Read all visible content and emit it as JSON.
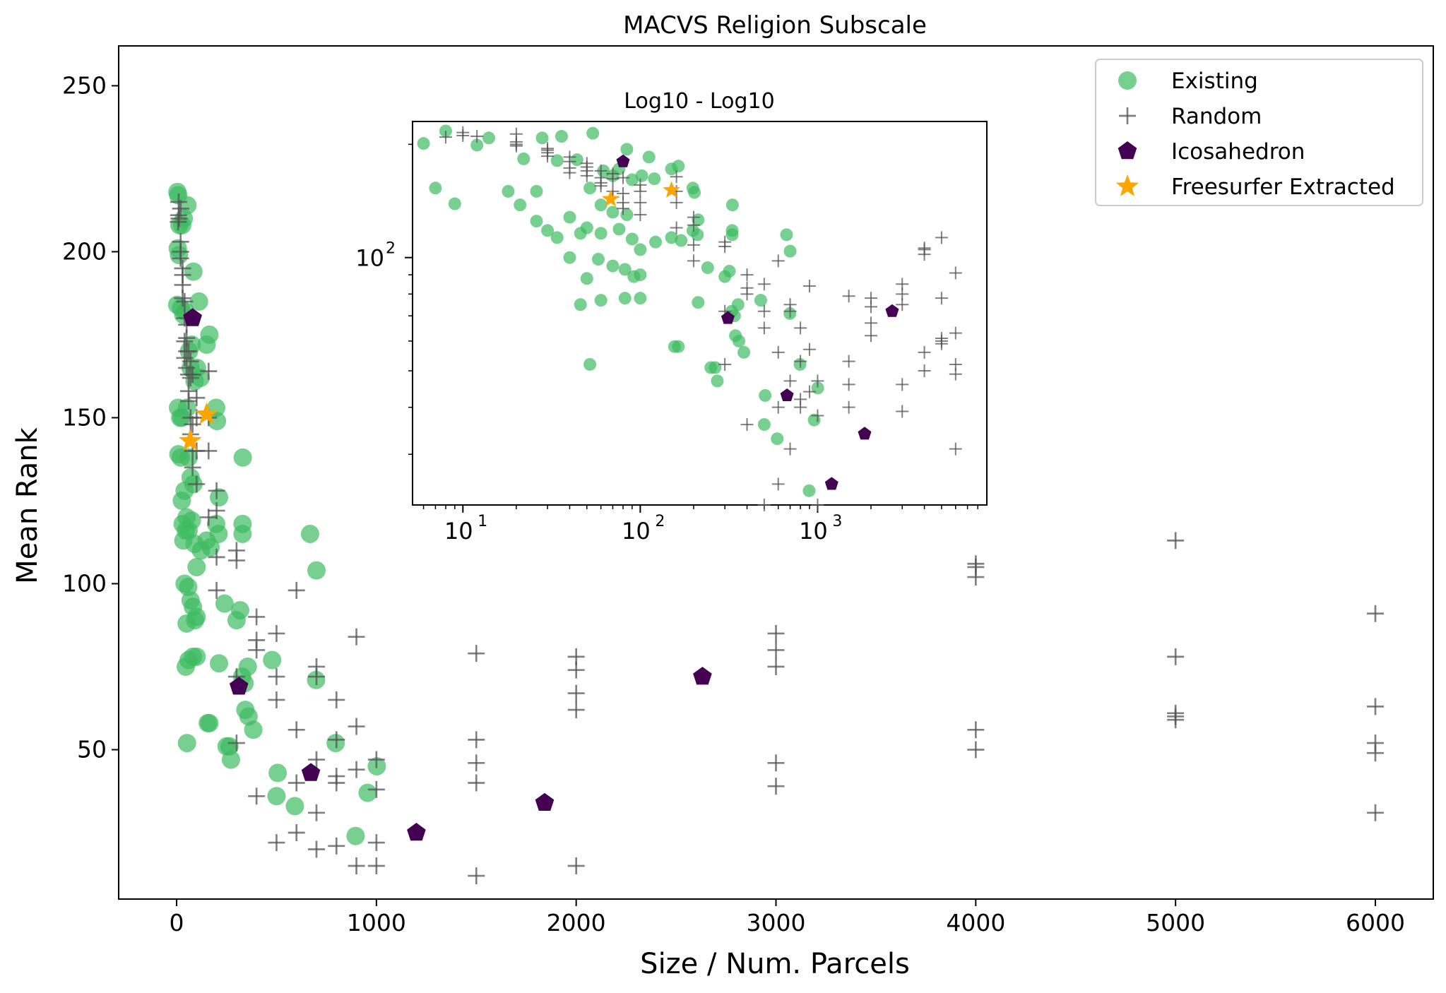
{
  "chart_data": {
    "type": "scatter",
    "title": "MACVS Religion Subscale",
    "xlabel": "Size / Num. Parcels",
    "ylabel": "Mean Rank",
    "xlim": [
      -290,
      6290
    ],
    "ylim": [
      5,
      262
    ],
    "xticks": [
      "0",
      "1000",
      "2000",
      "3000",
      "4000",
      "5000",
      "6000"
    ],
    "xtick_values": [
      0,
      1000,
      2000,
      3000,
      4000,
      5000,
      6000
    ],
    "yticks": [
      "50",
      "100",
      "150",
      "200",
      "250"
    ],
    "ytick_values": [
      50,
      100,
      150,
      200,
      250
    ],
    "grid": false,
    "legend_position": "top-right",
    "colors": {
      "existing": "#3dbb61",
      "random": "#555555",
      "icosahedron": "#440154",
      "freesurfer": "#ffa500"
    },
    "series": [
      {
        "name": "Existing",
        "marker": "circle",
        "color": "#3dbb61",
        "points": [
          [
            4,
            218
          ],
          [
            8,
            217
          ],
          [
            14,
            208
          ],
          [
            28,
            208
          ],
          [
            54,
            214
          ],
          [
            36,
            210
          ],
          [
            6,
            201
          ],
          [
            12,
            199
          ],
          [
            3,
            184
          ],
          [
            22,
            183
          ],
          [
            34,
            181
          ],
          [
            44,
            182
          ],
          [
            84,
            194
          ],
          [
            112,
            185
          ],
          [
            7,
            153
          ],
          [
            18,
            150
          ],
          [
            26,
            150
          ],
          [
            52,
            153
          ],
          [
            62,
            170
          ],
          [
            70,
            165
          ],
          [
            76,
            172
          ],
          [
            90,
            161
          ],
          [
            102,
            165
          ],
          [
            120,
            162
          ],
          [
            150,
            172
          ],
          [
            164,
            175
          ],
          [
            198,
            153
          ],
          [
            202,
            149
          ],
          [
            9,
            139
          ],
          [
            21,
            138
          ],
          [
            60,
            138
          ],
          [
            70,
            132
          ],
          [
            84,
            130
          ],
          [
            331,
            138
          ],
          [
            26,
            125
          ],
          [
            40,
            128
          ],
          [
            50,
            120
          ],
          [
            30,
            118
          ],
          [
            46,
            116
          ],
          [
            34,
            113
          ],
          [
            60,
            116
          ],
          [
            76,
            119
          ],
          [
            90,
            112
          ],
          [
            100,
            105
          ],
          [
            122,
            110
          ],
          [
            150,
            113
          ],
          [
            170,
            111
          ],
          [
            198,
            118
          ],
          [
            210,
            115
          ],
          [
            212,
            126
          ],
          [
            240,
            94
          ],
          [
            40,
            100
          ],
          [
            58,
            99
          ],
          [
            70,
            95
          ],
          [
            100,
            90
          ],
          [
            50,
            88
          ],
          [
            82,
            93
          ],
          [
            92,
            89
          ],
          [
            318,
            92
          ],
          [
            300,
            89
          ],
          [
            330,
            118
          ],
          [
            330,
            115
          ],
          [
            668,
            115
          ],
          [
            700,
            104
          ],
          [
            60,
            77
          ],
          [
            82,
            78
          ],
          [
            100,
            78
          ],
          [
            46,
            75
          ],
          [
            212,
            76
          ],
          [
            328,
            72
          ],
          [
            340,
            70
          ],
          [
            356,
            75
          ],
          [
            478,
            77
          ],
          [
            698,
            71
          ],
          [
            156,
            58
          ],
          [
            164,
            58
          ],
          [
            344,
            62
          ],
          [
            360,
            60
          ],
          [
            384,
            56
          ],
          [
            52,
            52
          ],
          [
            250,
            51
          ],
          [
            264,
            51
          ],
          [
            272,
            47
          ],
          [
            506,
            43
          ],
          [
            796,
            52
          ],
          [
            500,
            36
          ],
          [
            592,
            33
          ],
          [
            1002,
            45
          ],
          [
            956,
            37
          ],
          [
            896,
            24
          ]
        ]
      },
      {
        "name": "Random",
        "marker": "plus",
        "color": "#555555",
        "points": [
          [
            10,
            215
          ],
          [
            10,
            211
          ],
          [
            12,
            210
          ],
          [
            8,
            209
          ],
          [
            20,
            213
          ],
          [
            20,
            203
          ],
          [
            20,
            200
          ],
          [
            20,
            198
          ],
          [
            30,
            195
          ],
          [
            30,
            193
          ],
          [
            30,
            190
          ],
          [
            30,
            186
          ],
          [
            40,
            185
          ],
          [
            40,
            180
          ],
          [
            40,
            173
          ],
          [
            40,
            168
          ],
          [
            50,
            178
          ],
          [
            50,
            174
          ],
          [
            50,
            170
          ],
          [
            50,
            165
          ],
          [
            60,
            170
          ],
          [
            60,
            163
          ],
          [
            60,
            158
          ],
          [
            60,
            155
          ],
          [
            70,
            167
          ],
          [
            70,
            162
          ],
          [
            70,
            150
          ],
          [
            70,
            145
          ],
          [
            80,
            163
          ],
          [
            80,
            148
          ],
          [
            80,
            140
          ],
          [
            80,
            135
          ],
          [
            100,
            156
          ],
          [
            100,
            150
          ],
          [
            100,
            140
          ],
          [
            100,
            130
          ],
          [
            160,
            164
          ],
          [
            160,
            150
          ],
          [
            160,
            140
          ],
          [
            160,
            120
          ],
          [
            200,
            128
          ],
          [
            200,
            122
          ],
          [
            200,
            108
          ],
          [
            200,
            98
          ],
          [
            300,
            110
          ],
          [
            300,
            107
          ],
          [
            300,
            72
          ],
          [
            300,
            52
          ],
          [
            400,
            90
          ],
          [
            400,
            83
          ],
          [
            400,
            80
          ],
          [
            400,
            36
          ],
          [
            500,
            85
          ],
          [
            500,
            72
          ],
          [
            500,
            65
          ],
          [
            500,
            22
          ],
          [
            600,
            98
          ],
          [
            600,
            56
          ],
          [
            600,
            40
          ],
          [
            600,
            25
          ],
          [
            700,
            75
          ],
          [
            700,
            72
          ],
          [
            700,
            47
          ],
          [
            700,
            31
          ],
          [
            700,
            20
          ],
          [
            800,
            65
          ],
          [
            800,
            53
          ],
          [
            800,
            42
          ],
          [
            800,
            40
          ],
          [
            800,
            21
          ],
          [
            900,
            84
          ],
          [
            900,
            57
          ],
          [
            900,
            44
          ],
          [
            900,
            15
          ],
          [
            1000,
            47
          ],
          [
            1000,
            38
          ],
          [
            1000,
            22
          ],
          [
            1000,
            15
          ],
          [
            1500,
            79
          ],
          [
            1500,
            53
          ],
          [
            1500,
            46
          ],
          [
            1500,
            40
          ],
          [
            1500,
            12
          ],
          [
            2000,
            78
          ],
          [
            2000,
            74
          ],
          [
            2000,
            67
          ],
          [
            2000,
            62
          ],
          [
            2000,
            15
          ],
          [
            3000,
            85
          ],
          [
            3000,
            80
          ],
          [
            3000,
            75
          ],
          [
            3000,
            46
          ],
          [
            3000,
            39
          ],
          [
            4000,
            106
          ],
          [
            4000,
            105
          ],
          [
            4000,
            102
          ],
          [
            4000,
            56
          ],
          [
            4000,
            50
          ],
          [
            5000,
            113
          ],
          [
            5000,
            78
          ],
          [
            5000,
            61
          ],
          [
            5000,
            60
          ],
          [
            5000,
            59
          ],
          [
            6000,
            91
          ],
          [
            6000,
            63
          ],
          [
            6000,
            52
          ],
          [
            6000,
            49
          ],
          [
            6000,
            31
          ]
        ]
      },
      {
        "name": "Icosahedron",
        "marker": "pentagon",
        "color": "#440154",
        "points": [
          [
            80,
            180
          ],
          [
            312,
            69
          ],
          [
            672,
            43
          ],
          [
            1200,
            25
          ],
          [
            1842,
            34
          ],
          [
            2632,
            72
          ]
        ]
      },
      {
        "name": "Freesurfer Extracted",
        "marker": "star",
        "color": "#ffa500",
        "points": [
          [
            68,
            143
          ],
          [
            150,
            151
          ]
        ]
      }
    ],
    "inset": {
      "title": "Log10 - Log10",
      "xscale": "log",
      "yscale": "log",
      "xlim": [
        5.2,
        9000
      ],
      "ylim": [
        22,
        230
      ],
      "xticks": [
        "10",
        "10",
        "10"
      ],
      "xtick_exponents": [
        "1",
        "2",
        "3"
      ],
      "xtick_values": [
        10,
        100,
        1000
      ],
      "yticks": [
        "10"
      ],
      "ytick_exponents": [
        "2"
      ],
      "ytick_values": [
        100
      ],
      "series_source": "same points as main chart"
    },
    "legend": [
      "Existing",
      "Random",
      "Icosahedron",
      "Freesurfer Extracted"
    ]
  }
}
